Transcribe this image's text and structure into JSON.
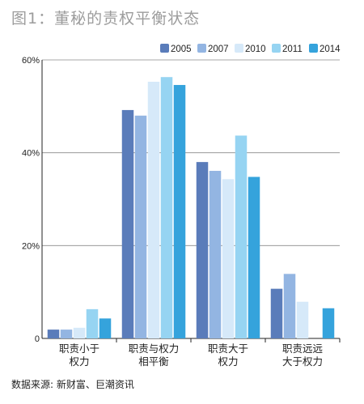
{
  "title": "图1：董秘的责权平衡状态",
  "source": "数据来源: 新财富、巨潮资讯",
  "chart_data": {
    "type": "bar",
    "categories": [
      "职责小于\n权力",
      "职责与权力\n相平衡",
      "职责大于\n权力",
      "职责远远\n大于权力"
    ],
    "series": [
      {
        "name": "2005",
        "color": "#5a7cba",
        "values": [
          1.9,
          49.2,
          38.0,
          10.7
        ]
      },
      {
        "name": "2007",
        "color": "#93b5e2",
        "values": [
          1.9,
          48.0,
          36.1,
          13.9
        ]
      },
      {
        "name": "2010",
        "color": "#d6e9f9",
        "values": [
          2.3,
          55.3,
          34.3,
          7.9
        ]
      },
      {
        "name": "2011",
        "color": "#96d4f2",
        "values": [
          6.3,
          56.3,
          43.7,
          0
        ]
      },
      {
        "name": "2014",
        "color": "#35a3dc",
        "values": [
          4.3,
          54.6,
          34.8,
          6.5
        ]
      }
    ],
    "y_ticks": [
      "0",
      "20%",
      "40%",
      "60%"
    ],
    "ylim": [
      0,
      60
    ],
    "grid": true,
    "legend": "top-right"
  }
}
